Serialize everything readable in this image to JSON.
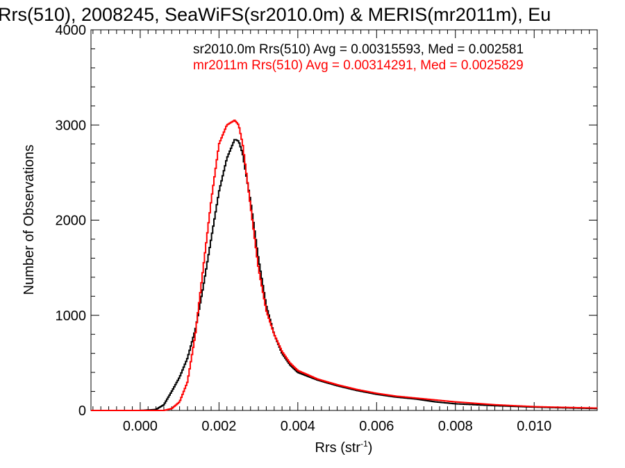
{
  "chart_data": {
    "type": "line",
    "title": "Rrs(510), 2008245, SeaWiFS(sr2010.0m) & MERIS(mr2011m), Eu",
    "xlabel": "Rrs (str",
    "xlabel_sup": "-1",
    "xlabel_close": ")",
    "ylabel": "Number of Observations",
    "xlim": [
      -0.00125,
      0.0116
    ],
    "ylim": [
      0,
      4000
    ],
    "x_ticks": [
      "0.000",
      "0.002",
      "0.004",
      "0.006",
      "0.008",
      "0.010"
    ],
    "x_tick_values": [
      0.0,
      0.002,
      0.004,
      0.006,
      0.008,
      0.01
    ],
    "y_ticks": [
      "0",
      "1000",
      "2000",
      "3000",
      "4000"
    ],
    "y_tick_values": [
      0,
      1000,
      2000,
      3000,
      4000
    ],
    "grid": false,
    "legend_position": "top",
    "colors": {
      "axis": "#000000",
      "series1": "#000000",
      "series2": "#ff0000"
    },
    "series": [
      {
        "name": "sr2010.0m",
        "color": "#000000",
        "x": [
          -0.00125,
          0.0,
          0.0004,
          0.0006,
          0.0008,
          0.001,
          0.0012,
          0.0014,
          0.0016,
          0.0018,
          0.002,
          0.0022,
          0.0024,
          0.0025,
          0.0026,
          0.0028,
          0.003,
          0.0032,
          0.0034,
          0.0036,
          0.0038,
          0.004,
          0.0045,
          0.005,
          0.0055,
          0.006,
          0.0065,
          0.007,
          0.0075,
          0.008,
          0.009,
          0.01,
          0.011,
          0.0116
        ],
        "y": [
          0,
          0,
          10,
          60,
          200,
          350,
          550,
          850,
          1300,
          1800,
          2300,
          2650,
          2850,
          2830,
          2700,
          2200,
          1600,
          1100,
          800,
          600,
          480,
          400,
          320,
          260,
          210,
          170,
          140,
          120,
          90,
          70,
          50,
          35,
          25,
          20
        ]
      },
      {
        "name": "mr2011m",
        "color": "#ff0000",
        "x": [
          -0.00125,
          0.0,
          0.0006,
          0.0008,
          0.001,
          0.0012,
          0.0014,
          0.0016,
          0.0018,
          0.002,
          0.0022,
          0.0024,
          0.0025,
          0.0026,
          0.0028,
          0.003,
          0.0032,
          0.0034,
          0.0036,
          0.0038,
          0.004,
          0.0045,
          0.005,
          0.0055,
          0.006,
          0.0065,
          0.007,
          0.0075,
          0.008,
          0.009,
          0.01,
          0.011,
          0.0116
        ],
        "y": [
          0,
          0,
          0,
          20,
          90,
          300,
          800,
          1500,
          2200,
          2800,
          3000,
          3050,
          3000,
          2800,
          2150,
          1500,
          1050,
          800,
          620,
          500,
          420,
          330,
          270,
          220,
          180,
          150,
          130,
          110,
          90,
          60,
          40,
          30,
          25
        ]
      }
    ],
    "annotations": [
      {
        "text": "sr2010.0m Rrs(510) Avg = 0.00315593, Med = 0.002581",
        "color": "#000000"
      },
      {
        "text": "mr2011m Rrs(510) Avg = 0.00314291, Med = 0.0025829",
        "color": "#ff0000"
      }
    ]
  }
}
